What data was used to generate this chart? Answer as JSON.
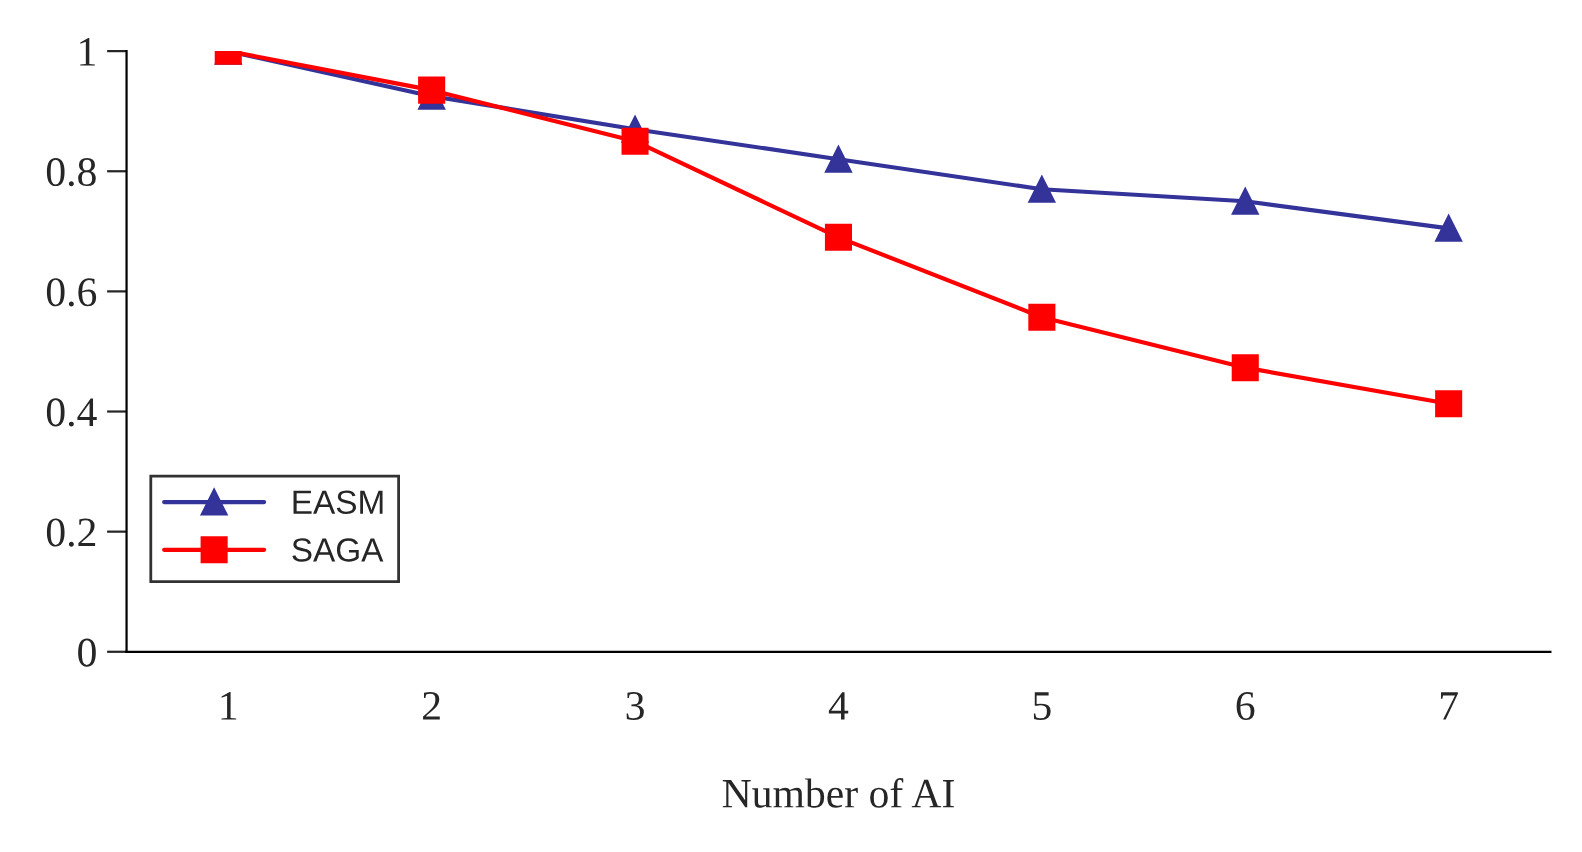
{
  "chart_data": {
    "type": "line",
    "xlabel": "Number of AI",
    "categories": [
      "1",
      "2",
      "3",
      "4",
      "5",
      "6",
      "7"
    ],
    "series": [
      {
        "name": "EASM",
        "color": "#333399",
        "marker": "triangle",
        "values": [
          1.0,
          0.925,
          0.87,
          0.82,
          0.77,
          0.75,
          0.705
        ]
      },
      {
        "name": "SAGA",
        "color": "#ff0000",
        "marker": "square",
        "values": [
          1.0,
          0.935,
          0.85,
          0.69,
          0.557,
          0.473,
          0.413
        ]
      }
    ],
    "ylim": [
      0,
      1
    ],
    "yticks": [
      0,
      0.2,
      0.4,
      0.6,
      0.8,
      1
    ],
    "legend": "bottom left",
    "grid": false
  }
}
